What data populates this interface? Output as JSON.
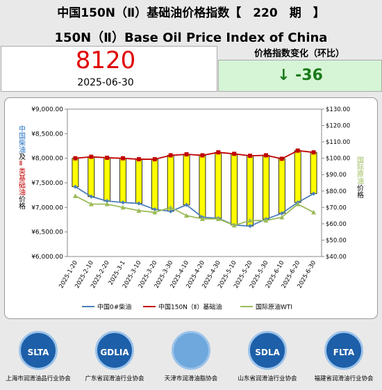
{
  "header": {
    "title": "中国150N（Ⅱ）基础油价格指数【　220　期　】",
    "subtitle": "150N（Ⅱ）Base Oil Price Index of China"
  },
  "index": {
    "value": 8120,
    "date": "2025-06-30",
    "change_label": "价格指数变化（环比）",
    "change": "↓ -36"
  },
  "chart_data": {
    "type": "line",
    "categories": [
      "2025-1-20",
      "2025-2-10",
      "2025-2-20",
      "2025-3-1",
      "2025-3-10",
      "2025-3-20",
      "2025-3-30",
      "2025-4-10",
      "2025-4-20",
      "2025-4-30",
      "2025-5-10",
      "2025-5-20",
      "2025-5-30",
      "2025-6-10",
      "2025-6-20",
      "2025-6-30"
    ],
    "series": [
      {
        "name": "中国0#柴油",
        "color": "#4a7ebb",
        "values": [
          7420,
          7220,
          7130,
          7100,
          7080,
          6960,
          6920,
          7050,
          6800,
          6780,
          6640,
          6620,
          6760,
          6880,
          7100,
          7280
        ]
      },
      {
        "name": "中国150N（Ⅱ）基础油",
        "color": "#c00000",
        "values": [
          8000,
          8030,
          8010,
          8000,
          7980,
          7980,
          8060,
          8080,
          8060,
          8120,
          8090,
          8050,
          8060,
          7990,
          8156,
          8120
        ]
      },
      {
        "name": "国际原油WTI",
        "color": "#9bbb59",
        "axis": "y2",
        "values": [
          77,
          72,
          72,
          70,
          68,
          67,
          70,
          65,
          63,
          63,
          59,
          62,
          62,
          64,
          72,
          67
        ]
      }
    ],
    "ylim": [
      6000,
      9000
    ],
    "yticks": [
      {
        "value": 6000,
        "label": "¥6,000.00"
      },
      {
        "value": 6500,
        "label": "¥6,500.00"
      },
      {
        "value": 7000,
        "label": "¥7,000.00"
      },
      {
        "value": 7500,
        "label": "¥7,500.00"
      },
      {
        "value": 8000,
        "label": "¥8,000.00"
      },
      {
        "value": 8500,
        "label": "¥8,500.00"
      },
      {
        "value": 9000,
        "label": "¥9,000.00"
      }
    ],
    "y2lim": [
      40,
      130
    ],
    "y2ticks": [
      {
        "value": 40,
        "label": "$40.00"
      },
      {
        "value": 50,
        "label": "$50.00"
      },
      {
        "value": 60,
        "label": "$60.00"
      },
      {
        "value": 70,
        "label": "$70.00"
      },
      {
        "value": 80,
        "label": "$80.00"
      },
      {
        "value": 90,
        "label": "$90.00"
      },
      {
        "value": 100,
        "label": "$100.00"
      },
      {
        "value": 110,
        "label": "$110.00"
      },
      {
        "value": 120,
        "label": "$120.00"
      },
      {
        "value": 130,
        "label": "$130.00"
      }
    ],
    "ylabel": [
      {
        "text": "中国柴油",
        "color": "#1f6fc0"
      },
      {
        "text": "及",
        "color": "#000000"
      },
      {
        "text": "Ⅱ类基础油",
        "color": "#c00000"
      },
      {
        "text": "价格",
        "color": "#000000"
      }
    ],
    "y2label": [
      {
        "text": "国际原油",
        "color": "#9bbb59"
      },
      {
        "text": "价格",
        "color": "#000000"
      }
    ],
    "bar_color": "#ffff00"
  },
  "associations": [
    {
      "logo": "SLTA",
      "name": "上海市润滑油品行业协会"
    },
    {
      "logo": "GDLIA",
      "name": "广东省润滑油行业协会"
    },
    {
      "name": "天津市润滑油脂协会"
    },
    {
      "logo": "SDLA",
      "name": "山东省润滑油行业协会"
    },
    {
      "logo": "FLTA",
      "name": "福建省润滑油行业协会"
    }
  ]
}
